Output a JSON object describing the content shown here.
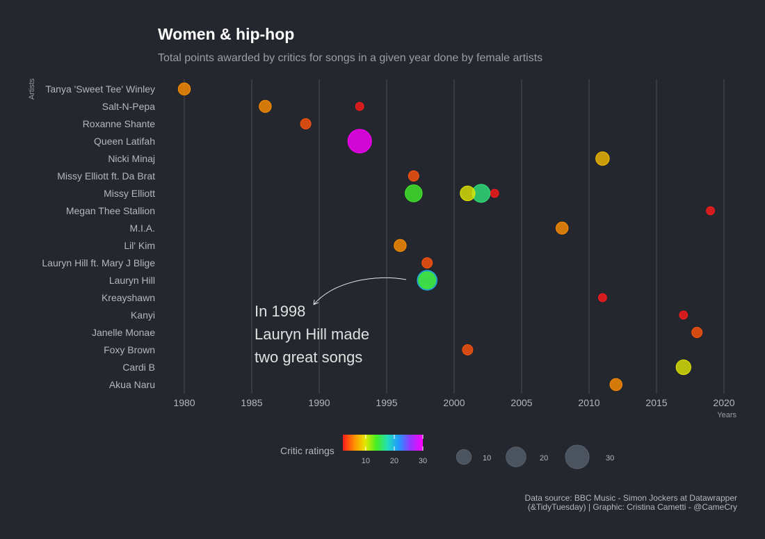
{
  "title": "Women & hip-hop",
  "subtitle": "Total points awarded by critics for songs in a given year done by female artists",
  "caption_line1": "Data source: BBC Music - Simon Jockers at Datawrapper",
  "caption_line2": "(&TidyTuesday) | Graphic: Cristina Cametti - @CameCry",
  "legend": {
    "color_title": "Critic ratings",
    "color_ticks": [
      10,
      20,
      30
    ],
    "size_ticks": [
      10,
      20,
      30
    ]
  },
  "annotation": {
    "lines": [
      "In 1998",
      "Lauryn Hill made",
      "two great songs"
    ]
  },
  "chart_data": {
    "type": "scatter",
    "xlabel": "Years",
    "ylabel": "Artists",
    "xlim": [
      1979,
      2021
    ],
    "xticks": [
      1980,
      1985,
      1990,
      1995,
      2000,
      2005,
      2010,
      2015,
      2020
    ],
    "grid_x": true,
    "categories": [
      "Tanya 'Sweet Tee' Winley",
      "Salt-N-Pepa",
      "Roxanne Shante",
      "Queen Latifah",
      "Nicki Minaj",
      "Missy Elliott ft. Da Brat",
      "Missy Elliott",
      "Megan Thee Stallion",
      "M.I.A.",
      "Lil' Kim",
      "Lauryn Hill ft. Mary J Blige",
      "Lauryn Hill",
      "Kreayshawn",
      "Kanyi",
      "Janelle Monae",
      "Foxy Brown",
      "Cardi B",
      "Akua Naru"
    ],
    "points": [
      {
        "artist": "Tanya 'Sweet Tee' Winley",
        "year": 1980,
        "points": 6
      },
      {
        "artist": "Salt-N-Pepa",
        "year": 1986,
        "points": 6
      },
      {
        "artist": "Salt-N-Pepa",
        "year": 1993,
        "points": 2
      },
      {
        "artist": "Roxanne Shante",
        "year": 1989,
        "points": 4
      },
      {
        "artist": "Queen Latifah",
        "year": 1993,
        "points": 30
      },
      {
        "artist": "Nicki Minaj",
        "year": 2011,
        "points": 8
      },
      {
        "artist": "Missy Elliott ft. Da Brat",
        "year": 1997,
        "points": 4
      },
      {
        "artist": "Missy Elliott",
        "year": 1997,
        "points": 14
      },
      {
        "artist": "Missy Elliott",
        "year": 2001,
        "points": 10
      },
      {
        "artist": "Missy Elliott",
        "year": 2002,
        "points": 16
      },
      {
        "artist": "Missy Elliott",
        "year": 2003,
        "points": 2
      },
      {
        "artist": "Megan Thee Stallion",
        "year": 2019,
        "points": 2
      },
      {
        "artist": "M.I.A.",
        "year": 2008,
        "points": 6
      },
      {
        "artist": "Lil' Kim",
        "year": 1996,
        "points": 6
      },
      {
        "artist": "Lauryn Hill ft. Mary J Blige",
        "year": 1998,
        "points": 4
      },
      {
        "artist": "Lauryn Hill",
        "year": 1998,
        "points": 20
      },
      {
        "artist": "Lauryn Hill",
        "year": 1998,
        "points": 14
      },
      {
        "artist": "Kreayshawn",
        "year": 2011,
        "points": 2
      },
      {
        "artist": "Kanyi",
        "year": 2017,
        "points": 2
      },
      {
        "artist": "Janelle Monae",
        "year": 2018,
        "points": 4
      },
      {
        "artist": "Foxy Brown",
        "year": 2001,
        "points": 4
      },
      {
        "artist": "Cardi B",
        "year": 2017,
        "points": 10
      },
      {
        "artist": "Akua Naru",
        "year": 2012,
        "points": 6
      }
    ]
  }
}
